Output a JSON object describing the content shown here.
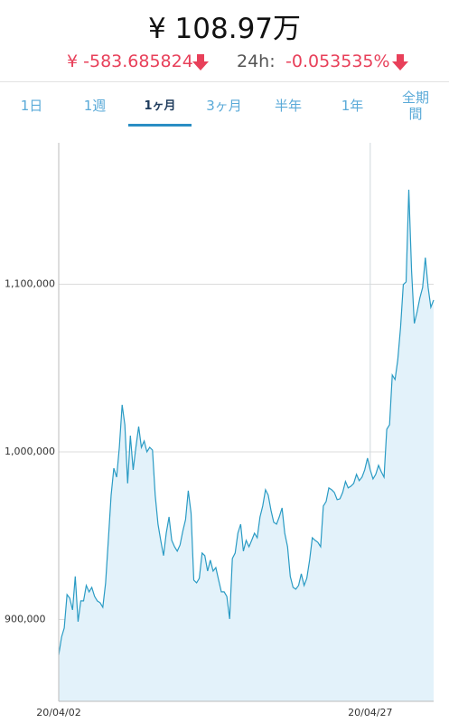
{
  "header": {
    "price": "¥ 108.97万",
    "change": "¥ -583.685824",
    "change_label": "24h:",
    "change_pct": "-0.053535%"
  },
  "tabs": {
    "items": [
      "1日",
      "1週",
      "1ヶ月",
      "3ヶ月",
      "半年",
      "1年",
      "全期間"
    ],
    "active": 2
  },
  "chart_data": {
    "type": "area",
    "categories": [
      "20/04/02",
      null,
      null,
      null,
      null,
      null,
      null,
      null,
      null,
      null,
      null,
      null,
      null,
      null,
      null,
      null,
      null,
      null,
      null,
      null,
      null,
      null,
      null,
      null,
      null,
      null,
      null,
      null,
      null,
      null,
      null,
      null,
      null,
      null,
      null,
      null,
      null,
      null,
      null,
      null,
      null,
      null,
      null,
      null,
      null,
      null,
      null,
      null,
      null,
      null,
      null,
      null,
      null,
      null,
      null,
      null,
      null,
      null,
      null,
      null,
      null,
      null,
      null,
      null,
      null,
      null,
      null,
      null,
      null,
      null,
      null,
      null,
      null,
      null,
      null,
      null,
      null,
      null,
      null,
      null,
      null,
      null,
      null,
      null,
      null,
      null,
      null,
      null,
      null,
      null,
      null,
      null,
      null,
      null,
      null,
      null,
      null,
      null,
      null,
      null,
      null,
      null,
      null,
      null,
      null,
      null,
      null,
      null,
      null,
      null,
      null,
      null,
      null,
      "20/04/27",
      null,
      null,
      null,
      null,
      null,
      null,
      null,
      null,
      null,
      null,
      null,
      null,
      null,
      null,
      null,
      null,
      null,
      null,
      null,
      null,
      null,
      null,
      null
    ],
    "values": [
      878800,
      889500,
      894900,
      914900,
      912700,
      905700,
      925700,
      898700,
      911100,
      911100,
      920300,
      916500,
      919200,
      913800,
      911100,
      910000,
      907300,
      921900,
      947200,
      974200,
      990300,
      984900,
      1002700,
      1028100,
      1016200,
      981200,
      1009700,
      989300,
      1002700,
      1015100,
      1002700,
      1006500,
      1000000,
      1002700,
      1001100,
      974200,
      956900,
      947200,
      938100,
      951500,
      961200,
      947200,
      943400,
      940800,
      944500,
      952600,
      959600,
      976900,
      963400,
      923500,
      921900,
      924600,
      939700,
      938100,
      928900,
      935400,
      928900,
      931000,
      923500,
      916500,
      916500,
      913800,
      900300,
      936400,
      939700,
      951500,
      956900,
      940800,
      947200,
      943400,
      947200,
      951500,
      948800,
      961200,
      967700,
      977400,
      974200,
      965000,
      958000,
      956900,
      961200,
      966600,
      951500,
      943400,
      925700,
      919200,
      918100,
      920300,
      927300,
      920300,
      924600,
      935400,
      948800,
      947200,
      946100,
      943400,
      967700,
      970400,
      978500,
      977400,
      975800,
      971500,
      972000,
      975800,
      982300,
      978500,
      979600,
      981200,
      986600,
      982800,
      984900,
      989300,
      996300,
      989300,
      983900,
      986600,
      992000,
      988200,
      984900,
      1013500,
      1016200,
      1045900,
      1043200,
      1055000,
      1074400,
      1099800,
      1101400,
      1156400,
      1107800,
      1076600,
      1083600,
      1091700,
      1098100,
      1115900,
      1098100,
      1086300,
      1090600
    ],
    "color": "#2a9bc4",
    "fill": "#e3f2fa",
    "ylim": [
      851200,
      1184400
    ],
    "yticks": [
      {
        "value": 900000,
        "label": "900,000"
      },
      {
        "value": 1000000,
        "label": "1,000,000"
      },
      {
        "value": 1100000,
        "label": "1,100,000"
      }
    ],
    "grid": true
  }
}
